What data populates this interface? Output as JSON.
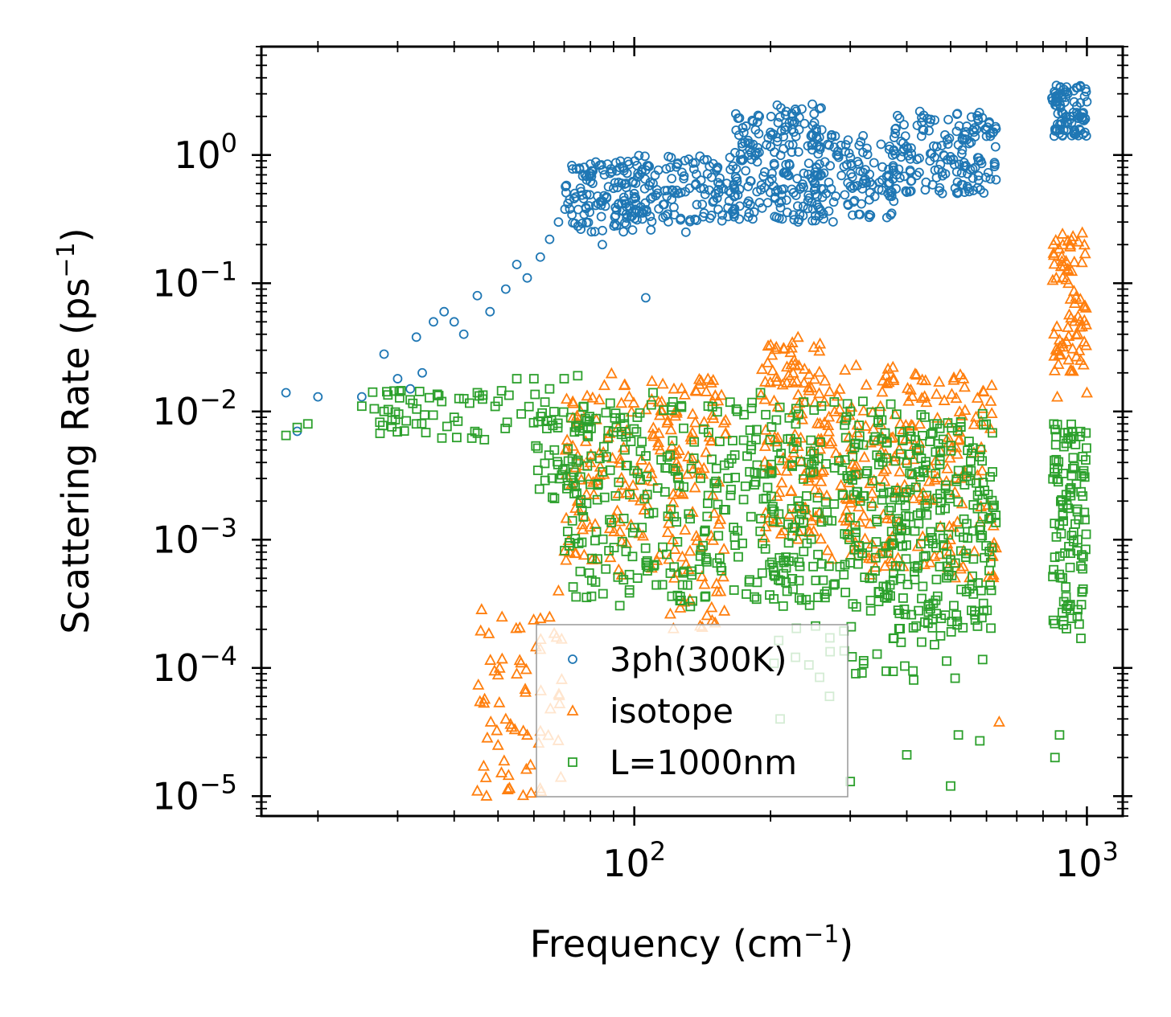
{
  "chart_data": {
    "type": "scatter",
    "xscale": "log",
    "yscale": "log",
    "xlim": [
      15,
      1200
    ],
    "ylim": [
      7e-06,
      7
    ],
    "xlabel": "Frequency (cm",
    "xlabel_exp": "−1",
    "xlabel_tail": ")",
    "ylabel": "Scattering Rate (ps",
    "ylabel_exp": "−1",
    "ylabel_tail": ")",
    "x_ticks": [
      {
        "value": 100,
        "base": "10",
        "exp": "2"
      },
      {
        "value": 1000,
        "base": "10",
        "exp": "3"
      }
    ],
    "y_ticks": [
      {
        "value": 1,
        "base": "10",
        "exp": "0"
      },
      {
        "value": 0.1,
        "base": "10",
        "exp": "−1"
      },
      {
        "value": 0.01,
        "base": "10",
        "exp": "−2"
      },
      {
        "value": 0.001,
        "base": "10",
        "exp": "−3"
      },
      {
        "value": 0.0001,
        "base": "10",
        "exp": "−4"
      },
      {
        "value": 1e-05,
        "base": "10",
        "exp": "−5"
      }
    ],
    "legend_position": "lower-center",
    "series": [
      {
        "name": "3ph(300K)",
        "marker": "circle",
        "color": "#1f77b4",
        "points": [
          [
            17,
            0.014
          ],
          [
            18,
            0.007
          ],
          [
            20,
            0.013
          ],
          [
            25,
            0.013
          ],
          [
            28,
            0.028
          ],
          [
            30,
            0.018
          ],
          [
            32,
            0.015
          ],
          [
            33,
            0.038
          ],
          [
            34,
            0.02
          ],
          [
            36,
            0.05
          ],
          [
            38,
            0.06
          ],
          [
            40,
            0.05
          ],
          [
            42,
            0.04
          ],
          [
            45,
            0.08
          ],
          [
            48,
            0.06
          ],
          [
            52,
            0.09
          ],
          [
            55,
            0.14
          ],
          [
            58,
            0.11
          ],
          [
            62,
            0.16
          ],
          [
            65,
            0.22
          ],
          [
            68,
            0.3
          ],
          [
            72,
            0.45
          ],
          [
            76,
            0.55
          ],
          [
            80,
            0.62
          ],
          [
            90,
            0.55
          ],
          [
            100,
            0.5
          ],
          [
            110,
            0.6
          ],
          [
            120,
            0.8
          ],
          [
            140,
            0.55
          ],
          [
            160,
            0.6
          ],
          [
            180,
            1.1
          ],
          [
            200,
            1.5
          ],
          [
            220,
            1.2
          ],
          [
            250,
            0.6
          ],
          [
            280,
            1.0
          ],
          [
            320,
            0.6
          ],
          [
            380,
            0.7
          ],
          [
            450,
            0.9
          ],
          [
            520,
            1.2
          ],
          [
            600,
            1.4
          ],
          [
            630,
            1.6
          ],
          [
            860,
            2.6
          ],
          [
            900,
            2.0
          ],
          [
            950,
            2.4
          ],
          [
            1000,
            2.6
          ],
          [
            106,
            0.077
          ],
          [
            85,
            0.2
          ],
          [
            130,
            0.25
          ]
        ],
        "clusters": [
          {
            "xr": [
              70,
              110
            ],
            "yr": [
              0.25,
              0.9
            ],
            "n": 140
          },
          {
            "xr": [
              100,
              170
            ],
            "yr": [
              0.3,
              1.0
            ],
            "n": 120
          },
          {
            "xr": [
              165,
              260
            ],
            "yr": [
              0.3,
              2.5
            ],
            "n": 200
          },
          {
            "xr": [
              250,
              380
            ],
            "yr": [
              0.3,
              1.5
            ],
            "n": 120
          },
          {
            "xr": [
              370,
              630
            ],
            "yr": [
              0.5,
              2.2
            ],
            "n": 160
          },
          {
            "xr": [
              830,
              1000
            ],
            "yr": [
              1.4,
              3.5
            ],
            "n": 90
          }
        ]
      },
      {
        "name": "isotope",
        "marker": "triangle",
        "color": "#ff7f0e",
        "points": [
          [
            45,
            1.1e-05
          ],
          [
            47,
            1.4e-05
          ],
          [
            50,
            2.5e-05
          ],
          [
            52,
            4e-05
          ],
          [
            55,
            9e-05
          ],
          [
            58,
            3e-05
          ],
          [
            62,
            0.00014
          ],
          [
            65,
            0.00025
          ],
          [
            68,
            0.0004
          ],
          [
            72,
            0.0008
          ],
          [
            75,
            0.002
          ],
          [
            80,
            0.004
          ],
          [
            640,
            3.8e-05
          ],
          [
            230,
            0.038
          ],
          [
            860,
            0.013
          ],
          [
            1000,
            0.014
          ]
        ],
        "clusters": [
          {
            "xr": [
              45,
              70
            ],
            "yr": [
              1e-05,
              0.0003
            ],
            "n": 60
          },
          {
            "xr": [
              70,
              120
            ],
            "yr": [
              0.0005,
              0.02
            ],
            "n": 120
          },
          {
            "xr": [
              120,
              160
            ],
            "yr": [
              0.0002,
              0.018
            ],
            "n": 100
          },
          {
            "xr": [
              190,
              260
            ],
            "yr": [
              0.001,
              0.035
            ],
            "n": 120
          },
          {
            "xr": [
              260,
              380
            ],
            "yr": [
              0.0005,
              0.025
            ],
            "n": 110
          },
          {
            "xr": [
              380,
              630
            ],
            "yr": [
              0.0005,
              0.02
            ],
            "n": 130
          },
          {
            "xr": [
              840,
              1000
            ],
            "yr": [
              0.02,
              0.25
            ],
            "n": 80
          }
        ]
      },
      {
        "name": "L=1000nm",
        "marker": "square",
        "color": "#2ca02c",
        "points": [
          [
            17,
            0.0065
          ],
          [
            18,
            0.0075
          ],
          [
            19,
            0.008
          ],
          [
            25,
            0.011
          ],
          [
            28,
            0.01
          ],
          [
            33,
            0.008
          ],
          [
            40,
            0.009
          ],
          [
            45,
            0.014
          ],
          [
            50,
            0.012
          ],
          [
            55,
            0.018
          ],
          [
            60,
            0.018
          ],
          [
            65,
            0.015
          ],
          [
            70,
            0.018
          ],
          [
            75,
            0.019
          ],
          [
            110,
            0.014
          ],
          [
            190,
            0.014
          ],
          [
            230,
            0.002
          ],
          [
            400,
            2.1e-05
          ],
          [
            500,
            1.2e-05
          ],
          [
            520,
            3e-05
          ],
          [
            580,
            2.7e-05
          ],
          [
            850,
            2e-05
          ],
          [
            870,
            3e-05
          ],
          [
            970,
            0.00017
          ],
          [
            300,
            1.3e-05
          ],
          [
            210,
            4e-05
          ],
          [
            270,
            6e-05
          ]
        ],
        "clusters": [
          {
            "xr": [
              25,
              70
            ],
            "yr": [
              0.006,
              0.015
            ],
            "n": 60
          },
          {
            "xr": [
              60,
              80
            ],
            "yr": [
              0.002,
              0.01
            ],
            "n": 40
          },
          {
            "xr": [
              70,
              200
            ],
            "yr": [
              0.0003,
              0.012
            ],
            "n": 260
          },
          {
            "xr": [
              200,
              380
            ],
            "yr": [
              0.0003,
              0.012
            ],
            "n": 220
          },
          {
            "xr": [
              380,
              630
            ],
            "yr": [
              0.0002,
              0.01
            ],
            "n": 220
          },
          {
            "xr": [
              840,
              1000
            ],
            "yr": [
              0.0002,
              0.008
            ],
            "n": 110
          },
          {
            "xr": [
              200,
              600
            ],
            "yr": [
              8e-05,
              0.0003
            ],
            "n": 40
          }
        ]
      }
    ]
  }
}
